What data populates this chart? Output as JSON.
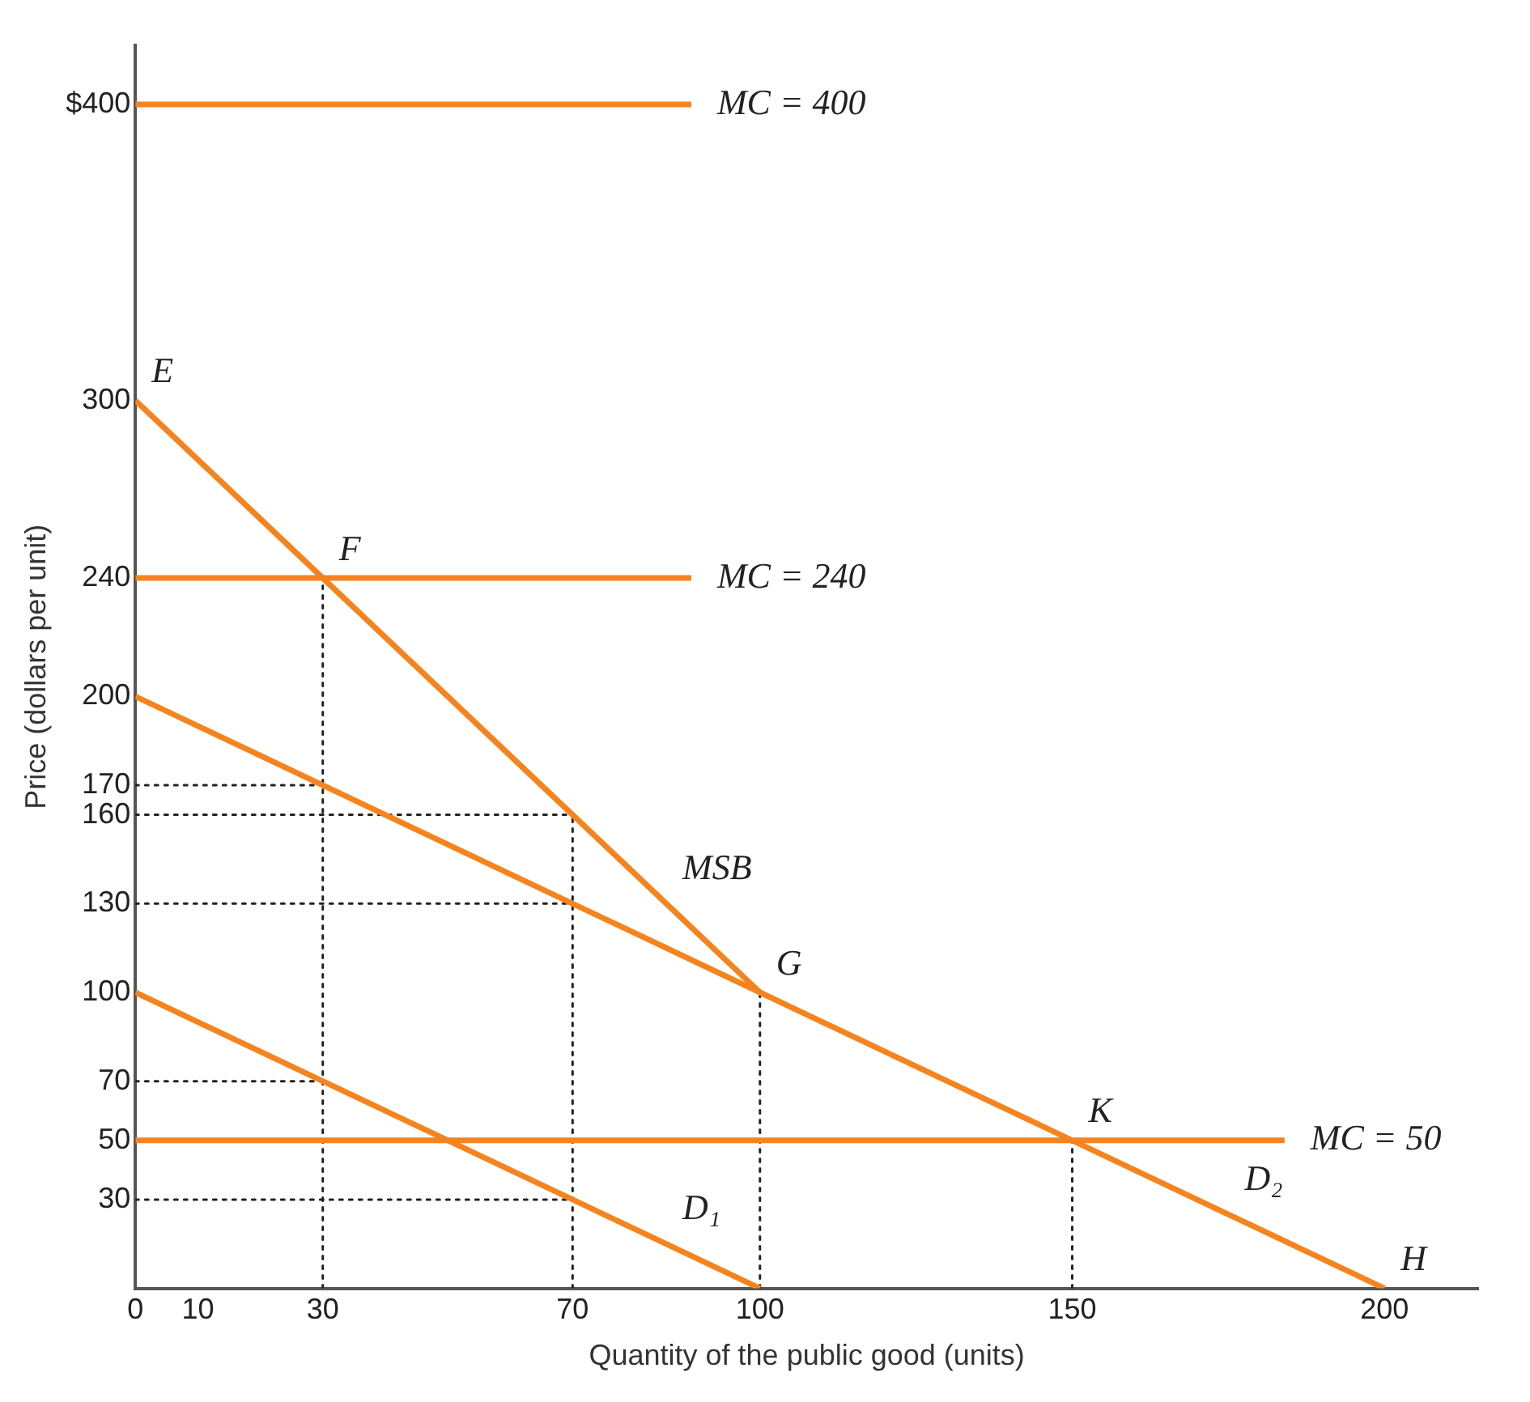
{
  "chart_data": {
    "type": "line",
    "xlabel": "Quantity of the public good (units)",
    "ylabel": "Price (dollars per unit)",
    "xlim": [
      0,
      215
    ],
    "ylim": [
      0,
      420
    ],
    "xticks": [
      0,
      10,
      30,
      70,
      100,
      150,
      200
    ],
    "yticks": [
      30,
      50,
      70,
      100,
      130,
      160,
      170,
      200,
      240,
      300,
      {
        "value": 400,
        "label": "$400"
      }
    ],
    "grid": false,
    "legend": false,
    "marker": "none",
    "line_style": "solid",
    "series": [
      {
        "name": "MC = 400",
        "color": "#f5841f",
        "x": [
          0,
          89
        ],
        "values": [
          400,
          400
        ]
      },
      {
        "name": "MC = 240",
        "color": "#f5841f",
        "x": [
          0,
          89
        ],
        "values": [
          240,
          240
        ]
      },
      {
        "name": "MC = 50",
        "color": "#f5841f",
        "x": [
          0,
          184
        ],
        "values": [
          50,
          50
        ]
      },
      {
        "name": "MSB",
        "color": "#f5841f",
        "x": [
          0,
          30,
          70,
          100
        ],
        "values": [
          300,
          240,
          160,
          100
        ]
      },
      {
        "name": "D₂",
        "color": "#f5841f",
        "x": [
          0,
          70,
          100,
          150,
          200
        ],
        "values": [
          200,
          130,
          100,
          50,
          0
        ]
      },
      {
        "name": "D₁",
        "color": "#f5841f",
        "x": [
          0,
          30,
          70,
          100
        ],
        "values": [
          100,
          70,
          30,
          0
        ]
      },
      {
        "color": "#222222",
        "line_style": "dotted",
        "x": [
          30,
          30
        ],
        "values": [
          0,
          240
        ]
      },
      {
        "color": "#222222",
        "line_style": "dotted",
        "x": [
          70,
          70
        ],
        "values": [
          0,
          160
        ]
      },
      {
        "color": "#222222",
        "line_style": "dotted",
        "x": [
          100,
          100
        ],
        "values": [
          0,
          100
        ]
      },
      {
        "color": "#222222",
        "line_style": "dotted",
        "x": [
          150,
          150
        ],
        "values": [
          0,
          50
        ]
      },
      {
        "color": "#222222",
        "line_style": "dotted",
        "x": [
          0,
          30
        ],
        "values": [
          170,
          170
        ]
      },
      {
        "color": "#222222",
        "line_style": "dotted",
        "x": [
          0,
          70
        ],
        "values": [
          160,
          160
        ]
      },
      {
        "color": "#222222",
        "line_style": "dotted",
        "x": [
          0,
          70
        ],
        "values": [
          130,
          130
        ]
      },
      {
        "color": "#222222",
        "line_style": "dotted",
        "x": [
          0,
          30
        ],
        "values": [
          70,
          70
        ]
      },
      {
        "color": "#222222",
        "line_style": "dotted",
        "x": [
          0,
          70
        ],
        "values": [
          30,
          30
        ]
      }
    ],
    "annotations": [
      {
        "text": "E",
        "x": 0,
        "y": 300
      },
      {
        "text": "F",
        "x": 30,
        "y": 240
      },
      {
        "text": "G",
        "x": 100,
        "y": 100
      },
      {
        "text": "K",
        "x": 150,
        "y": 50
      },
      {
        "text": "H",
        "x": 200,
        "y": 0
      }
    ]
  }
}
